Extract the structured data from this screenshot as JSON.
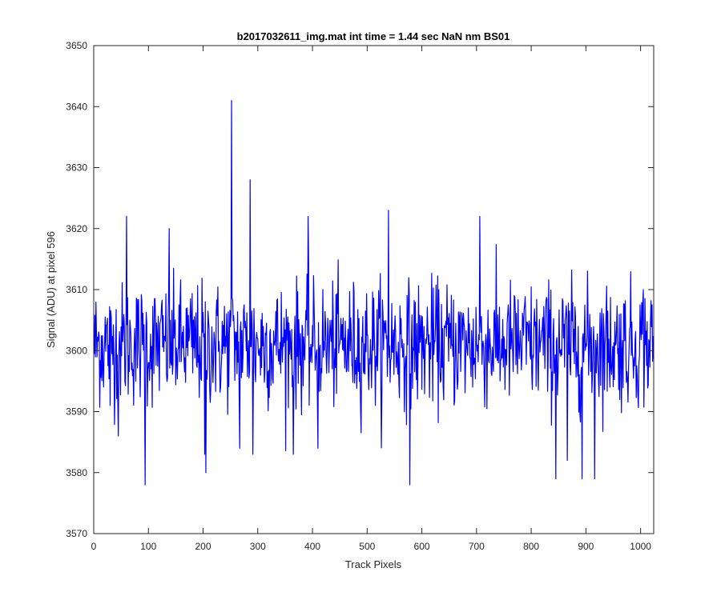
{
  "chart_data": {
    "type": "line",
    "title": "b2017032611_img.mat int time = 1.44 sec  NaN nm BS01",
    "xlabel": "Track Pixels",
    "ylabel": "Signal (ADU) at pixel 596",
    "xlim": [
      0,
      1024
    ],
    "ylim": [
      3570,
      3650
    ],
    "xticks": [
      0,
      100,
      200,
      300,
      400,
      500,
      600,
      700,
      800,
      900,
      1000
    ],
    "yticks": [
      3570,
      3580,
      3590,
      3600,
      3610,
      3620,
      3630,
      3640,
      3650
    ],
    "grid": false,
    "legend": "none",
    "series": [
      {
        "color": "#0000ff",
        "x_start": 1,
        "x_step": 1,
        "n_points": 1024,
        "baseline": 3601,
        "noise_amplitude": 5,
        "notable_points": [
          {
            "x": 30,
            "y": 3591
          },
          {
            "x": 45,
            "y": 3586
          },
          {
            "x": 60,
            "y": 3622
          },
          {
            "x": 94,
            "y": 3578
          },
          {
            "x": 138,
            "y": 3620
          },
          {
            "x": 203,
            "y": 3583
          },
          {
            "x": 205,
            "y": 3580
          },
          {
            "x": 252,
            "y": 3641
          },
          {
            "x": 267,
            "y": 3584
          },
          {
            "x": 286,
            "y": 3628
          },
          {
            "x": 291,
            "y": 3583
          },
          {
            "x": 365,
            "y": 3583
          },
          {
            "x": 392,
            "y": 3622
          },
          {
            "x": 410,
            "y": 3584
          },
          {
            "x": 539,
            "y": 3623
          },
          {
            "x": 578,
            "y": 3578
          },
          {
            "x": 706,
            "y": 3622
          },
          {
            "x": 845,
            "y": 3579
          },
          {
            "x": 866,
            "y": 3582
          },
          {
            "x": 893,
            "y": 3579
          },
          {
            "x": 916,
            "y": 3579
          },
          {
            "x": 1005,
            "y": 3610
          }
        ]
      }
    ]
  }
}
